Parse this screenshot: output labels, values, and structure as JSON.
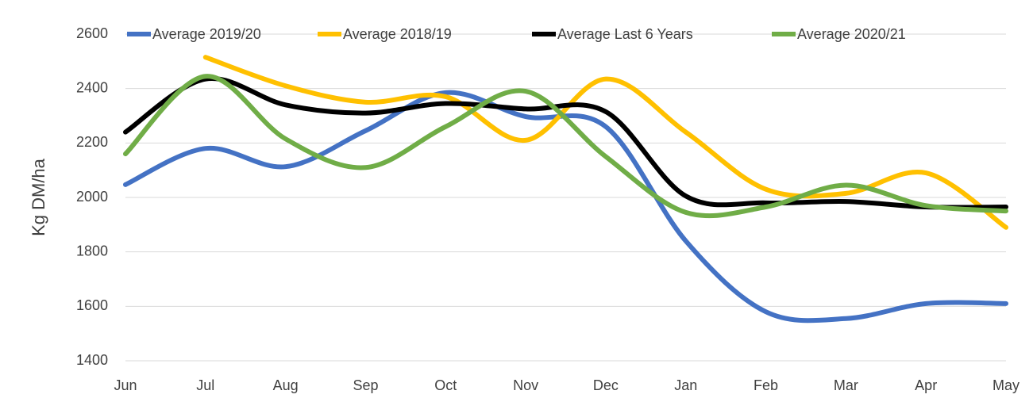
{
  "chart_data": {
    "type": "line",
    "y_label": "Kg DM/ha",
    "categories": [
      "Jun",
      "Jul",
      "Aug",
      "Sep",
      "Oct",
      "Nov",
      "Dec",
      "Jan",
      "Feb",
      "Mar",
      "Apr",
      "May"
    ],
    "series": [
      {
        "name": "Average 2019/20",
        "color": "#4472c4",
        "values": [
          2047,
          2180,
          2113,
          2245,
          2385,
          2297,
          2260,
          1840,
          1580,
          1555,
          1610,
          1610
        ]
      },
      {
        "name": "Average 2018/19",
        "color": "#ffc000",
        "values": [
          null,
          2515,
          2410,
          2350,
          2370,
          2210,
          2435,
          2240,
          2030,
          2015,
          2090,
          1890
        ]
      },
      {
        "name": "Average Last 6 Years",
        "color": "#000000",
        "values": [
          2240,
          2435,
          2340,
          2310,
          2345,
          2325,
          2315,
          2005,
          1980,
          1985,
          1965,
          1965
        ]
      },
      {
        "name": "Average 2020/21",
        "color": "#70ad47",
        "values": [
          2160,
          2445,
          2215,
          2110,
          2260,
          2390,
          2150,
          1945,
          1965,
          2045,
          1970,
          1950
        ]
      }
    ],
    "ylim": [
      1400,
      2600
    ],
    "yticks": [
      1400,
      1600,
      1800,
      2000,
      2200,
      2400,
      2600
    ],
    "grid": true,
    "smooth": true
  }
}
